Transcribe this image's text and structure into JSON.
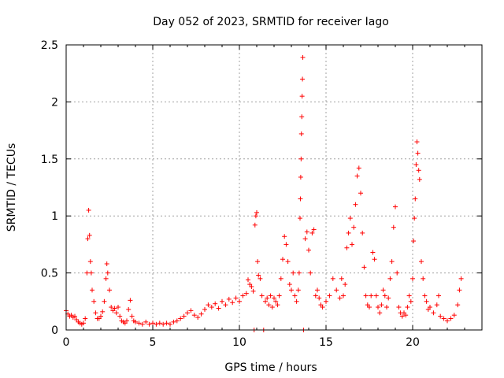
{
  "chart_data": {
    "type": "scatter",
    "title": "Day 052 of 2023, SRMTID for receiver Iago",
    "xlabel": "GPS time / hours",
    "ylabel": "SRMTID / TECUs",
    "xlim": [
      0,
      24
    ],
    "ylim": [
      0,
      2.5
    ],
    "xticks": [
      0,
      5,
      10,
      15,
      20
    ],
    "yticks": [
      0,
      0.5,
      1,
      1.5,
      2,
      2.5
    ],
    "ytick_labels": [
      "0",
      "0.5",
      "1",
      "1.5",
      "2",
      "2.5"
    ],
    "grid": true,
    "marker": "+",
    "colors": {
      "series": "#ff0000",
      "axes": "#000000",
      "grid": "#a0a0a0"
    },
    "series": [
      {
        "name": "SRMTID",
        "points": [
          [
            0.0,
            0.17
          ],
          [
            0.1,
            0.14
          ],
          [
            0.2,
            0.12
          ],
          [
            0.3,
            0.13
          ],
          [
            0.4,
            0.11
          ],
          [
            0.5,
            0.12
          ],
          [
            0.6,
            0.09
          ],
          [
            0.7,
            0.07
          ],
          [
            0.8,
            0.06
          ],
          [
            0.9,
            0.05
          ],
          [
            1.0,
            0.06
          ],
          [
            1.1,
            0.1
          ],
          [
            1.2,
            0.5
          ],
          [
            1.25,
            0.8
          ],
          [
            1.3,
            1.05
          ],
          [
            1.35,
            0.83
          ],
          [
            1.4,
            0.6
          ],
          [
            1.45,
            0.5
          ],
          [
            1.5,
            0.35
          ],
          [
            1.6,
            0.25
          ],
          [
            1.7,
            0.15
          ],
          [
            1.8,
            0.1
          ],
          [
            1.9,
            0.1
          ],
          [
            2.0,
            0.12
          ],
          [
            2.1,
            0.16
          ],
          [
            2.2,
            0.25
          ],
          [
            2.3,
            0.45
          ],
          [
            2.35,
            0.58
          ],
          [
            2.4,
            0.5
          ],
          [
            2.5,
            0.35
          ],
          [
            2.6,
            0.2
          ],
          [
            2.7,
            0.17
          ],
          [
            2.8,
            0.19
          ],
          [
            2.9,
            0.15
          ],
          [
            3.0,
            0.2
          ],
          [
            3.1,
            0.12
          ],
          [
            3.2,
            0.08
          ],
          [
            3.3,
            0.07
          ],
          [
            3.4,
            0.06
          ],
          [
            3.5,
            0.08
          ],
          [
            3.6,
            0.18
          ],
          [
            3.7,
            0.26
          ],
          [
            3.8,
            0.12
          ],
          [
            3.9,
            0.08
          ],
          [
            4.0,
            0.07
          ],
          [
            4.2,
            0.06
          ],
          [
            4.4,
            0.05
          ],
          [
            4.6,
            0.07
          ],
          [
            4.8,
            0.05
          ],
          [
            5.0,
            0.06
          ],
          [
            5.2,
            0.05
          ],
          [
            5.4,
            0.06
          ],
          [
            5.6,
            0.05
          ],
          [
            5.8,
            0.06
          ],
          [
            6.0,
            0.05
          ],
          [
            6.2,
            0.07
          ],
          [
            6.4,
            0.08
          ],
          [
            6.6,
            0.1
          ],
          [
            6.8,
            0.12
          ],
          [
            7.0,
            0.15
          ],
          [
            7.2,
            0.17
          ],
          [
            7.4,
            0.13
          ],
          [
            7.6,
            0.11
          ],
          [
            7.8,
            0.14
          ],
          [
            8.0,
            0.18
          ],
          [
            8.2,
            0.22
          ],
          [
            8.4,
            0.2
          ],
          [
            8.6,
            0.23
          ],
          [
            8.8,
            0.19
          ],
          [
            9.0,
            0.25
          ],
          [
            9.2,
            0.22
          ],
          [
            9.4,
            0.27
          ],
          [
            9.6,
            0.24
          ],
          [
            9.8,
            0.28
          ],
          [
            10.0,
            0.25
          ],
          [
            10.2,
            0.3
          ],
          [
            10.4,
            0.32
          ],
          [
            10.5,
            0.44
          ],
          [
            10.6,
            0.4
          ],
          [
            10.7,
            0.38
          ],
          [
            10.8,
            0.34
          ],
          [
            10.85,
            0.0
          ],
          [
            10.9,
            0.92
          ],
          [
            10.95,
            1.0
          ],
          [
            11.0,
            1.03
          ],
          [
            11.05,
            0.6
          ],
          [
            11.1,
            0.48
          ],
          [
            11.2,
            0.45
          ],
          [
            11.3,
            0.3
          ],
          [
            11.4,
            0.0
          ],
          [
            11.5,
            0.25
          ],
          [
            11.6,
            0.28
          ],
          [
            11.7,
            0.22
          ],
          [
            11.8,
            0.3
          ],
          [
            11.9,
            0.2
          ],
          [
            12.0,
            0.28
          ],
          [
            12.1,
            0.25
          ],
          [
            12.2,
            0.22
          ],
          [
            12.3,
            0.3
          ],
          [
            12.4,
            0.45
          ],
          [
            12.5,
            0.62
          ],
          [
            12.6,
            0.82
          ],
          [
            12.7,
            0.75
          ],
          [
            12.8,
            0.6
          ],
          [
            12.9,
            0.4
          ],
          [
            13.0,
            0.35
          ],
          [
            13.1,
            0.5
          ],
          [
            13.2,
            0.3
          ],
          [
            13.3,
            0.25
          ],
          [
            13.4,
            0.35
          ],
          [
            13.45,
            0.5
          ],
          [
            13.5,
            0.98
          ],
          [
            13.52,
            1.15
          ],
          [
            13.54,
            1.34
          ],
          [
            13.56,
            1.5
          ],
          [
            13.58,
            1.72
          ],
          [
            13.6,
            1.87
          ],
          [
            13.62,
            2.05
          ],
          [
            13.64,
            2.2
          ],
          [
            13.66,
            2.39
          ],
          [
            13.7,
            0.0
          ],
          [
            13.8,
            0.8
          ],
          [
            13.9,
            0.86
          ],
          [
            14.0,
            0.7
          ],
          [
            14.1,
            0.5
          ],
          [
            14.2,
            0.85
          ],
          [
            14.3,
            0.88
          ],
          [
            14.4,
            0.3
          ],
          [
            14.5,
            0.35
          ],
          [
            14.6,
            0.28
          ],
          [
            14.7,
            0.22
          ],
          [
            14.8,
            0.2
          ],
          [
            15.0,
            0.25
          ],
          [
            15.2,
            0.3
          ],
          [
            15.4,
            0.45
          ],
          [
            15.6,
            0.35
          ],
          [
            15.8,
            0.28
          ],
          [
            15.9,
            0.45
          ],
          [
            16.0,
            0.3
          ],
          [
            16.1,
            0.4
          ],
          [
            16.2,
            0.72
          ],
          [
            16.3,
            0.85
          ],
          [
            16.4,
            0.98
          ],
          [
            16.5,
            0.75
          ],
          [
            16.6,
            0.9
          ],
          [
            16.7,
            1.1
          ],
          [
            16.8,
            1.35
          ],
          [
            16.9,
            1.42
          ],
          [
            17.0,
            1.2
          ],
          [
            17.1,
            0.85
          ],
          [
            17.2,
            0.55
          ],
          [
            17.3,
            0.3
          ],
          [
            17.4,
            0.22
          ],
          [
            17.5,
            0.2
          ],
          [
            17.6,
            0.3
          ],
          [
            17.7,
            0.68
          ],
          [
            17.8,
            0.62
          ],
          [
            17.9,
            0.3
          ],
          [
            18.0,
            0.2
          ],
          [
            18.1,
            0.15
          ],
          [
            18.2,
            0.22
          ],
          [
            18.3,
            0.35
          ],
          [
            18.4,
            0.3
          ],
          [
            18.5,
            0.2
          ],
          [
            18.6,
            0.28
          ],
          [
            18.7,
            0.45
          ],
          [
            18.8,
            0.6
          ],
          [
            18.9,
            0.9
          ],
          [
            19.0,
            1.08
          ],
          [
            19.1,
            0.5
          ],
          [
            19.2,
            0.2
          ],
          [
            19.3,
            0.15
          ],
          [
            19.4,
            0.12
          ],
          [
            19.5,
            0.15
          ],
          [
            19.6,
            0.13
          ],
          [
            19.7,
            0.2
          ],
          [
            19.8,
            0.3
          ],
          [
            19.9,
            0.25
          ],
          [
            20.0,
            0.45
          ],
          [
            20.05,
            0.78
          ],
          [
            20.1,
            0.98
          ],
          [
            20.15,
            1.15
          ],
          [
            20.2,
            1.45
          ],
          [
            20.25,
            1.65
          ],
          [
            20.3,
            1.55
          ],
          [
            20.35,
            1.4
          ],
          [
            20.4,
            1.32
          ],
          [
            20.5,
            0.6
          ],
          [
            20.6,
            0.45
          ],
          [
            20.7,
            0.3
          ],
          [
            20.8,
            0.25
          ],
          [
            20.9,
            0.18
          ],
          [
            21.0,
            0.2
          ],
          [
            21.2,
            0.15
          ],
          [
            21.4,
            0.22
          ],
          [
            21.5,
            0.3
          ],
          [
            21.6,
            0.12
          ],
          [
            21.8,
            0.1
          ],
          [
            22.0,
            0.08
          ],
          [
            22.2,
            0.1
          ],
          [
            22.4,
            0.13
          ],
          [
            22.6,
            0.22
          ],
          [
            22.7,
            0.35
          ],
          [
            22.8,
            0.45
          ]
        ]
      }
    ]
  }
}
